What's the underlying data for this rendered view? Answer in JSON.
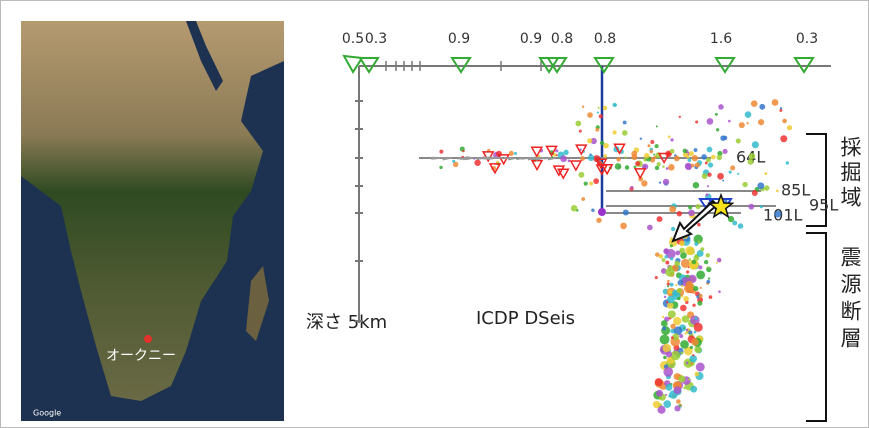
{
  "map": {
    "place_label": "オークニー",
    "attribution": "Google"
  },
  "diagram": {
    "top_labels": [
      "0.5",
      "0.3",
      "0.9",
      "0.9",
      "0.8",
      "0.8",
      "1.6",
      "0.3"
    ],
    "levels": [
      "64L",
      "85L",
      "95L",
      "101L"
    ],
    "depth_label": "深さ 5km",
    "project_label": "ICDP DSeis",
    "zones": [
      "採掘域",
      "震源断層"
    ]
  }
}
